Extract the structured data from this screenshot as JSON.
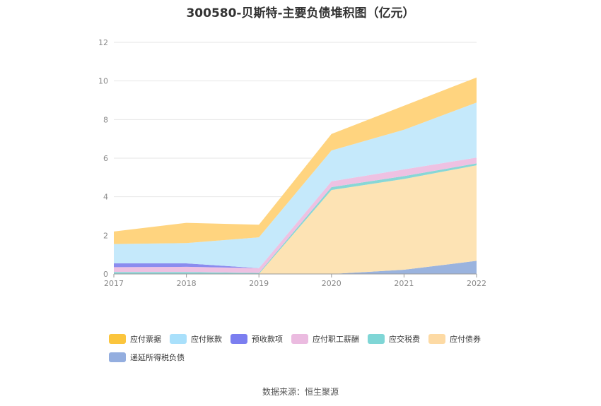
{
  "chart_data": {
    "type": "area",
    "stacked": true,
    "title": "300580-贝斯特-主要负债堆积图（亿元）",
    "x": [
      "2017",
      "2018",
      "2019",
      "2020",
      "2021",
      "2022"
    ],
    "ylim": [
      0,
      12
    ],
    "yticks": [
      0,
      2,
      4,
      6,
      8,
      10,
      12
    ],
    "grid": true,
    "legend_position": "bottom",
    "series": [
      {
        "name": "递延所得税负债",
        "color": "#9ab3de",
        "values": [
          0.0,
          0.0,
          0.0,
          0.0,
          0.22,
          0.68
        ]
      },
      {
        "name": "应付债券",
        "color": "#fde3b4",
        "values": [
          0.0,
          0.0,
          0.0,
          4.35,
          4.7,
          4.95
        ]
      },
      {
        "name": "应交税费",
        "color": "#88d7d6",
        "values": [
          0.1,
          0.1,
          0.05,
          0.15,
          0.15,
          0.1
        ]
      },
      {
        "name": "应付职工薪酬",
        "color": "#eec1e2",
        "values": [
          0.25,
          0.27,
          0.25,
          0.3,
          0.35,
          0.3
        ]
      },
      {
        "name": "预收款项",
        "color": "#8b8cef",
        "values": [
          0.2,
          0.18,
          0.0,
          0.0,
          0.0,
          0.0
        ]
      },
      {
        "name": "应付账款",
        "color": "#c5e9fb",
        "values": [
          1.0,
          1.05,
          1.6,
          1.6,
          2.05,
          2.85
        ]
      },
      {
        "name": "应付票据",
        "color": "#ffd47f",
        "values": [
          0.65,
          1.05,
          0.65,
          0.85,
          1.25,
          1.3
        ]
      }
    ]
  },
  "legend": [
    {
      "name": "应付票据",
      "color": "#fbc53d"
    },
    {
      "name": "应付账款",
      "color": "#a9e0fb"
    },
    {
      "name": "预收款项",
      "color": "#7b7ef0"
    },
    {
      "name": "应付职工薪酬",
      "color": "#ebbbe0"
    },
    {
      "name": "应交税费",
      "color": "#7fd6d6"
    },
    {
      "name": "应付债券",
      "color": "#fddaa4"
    },
    {
      "name": "递延所得税负债",
      "color": "#94aedf"
    }
  ],
  "source": "数据来源：恒生聚源"
}
